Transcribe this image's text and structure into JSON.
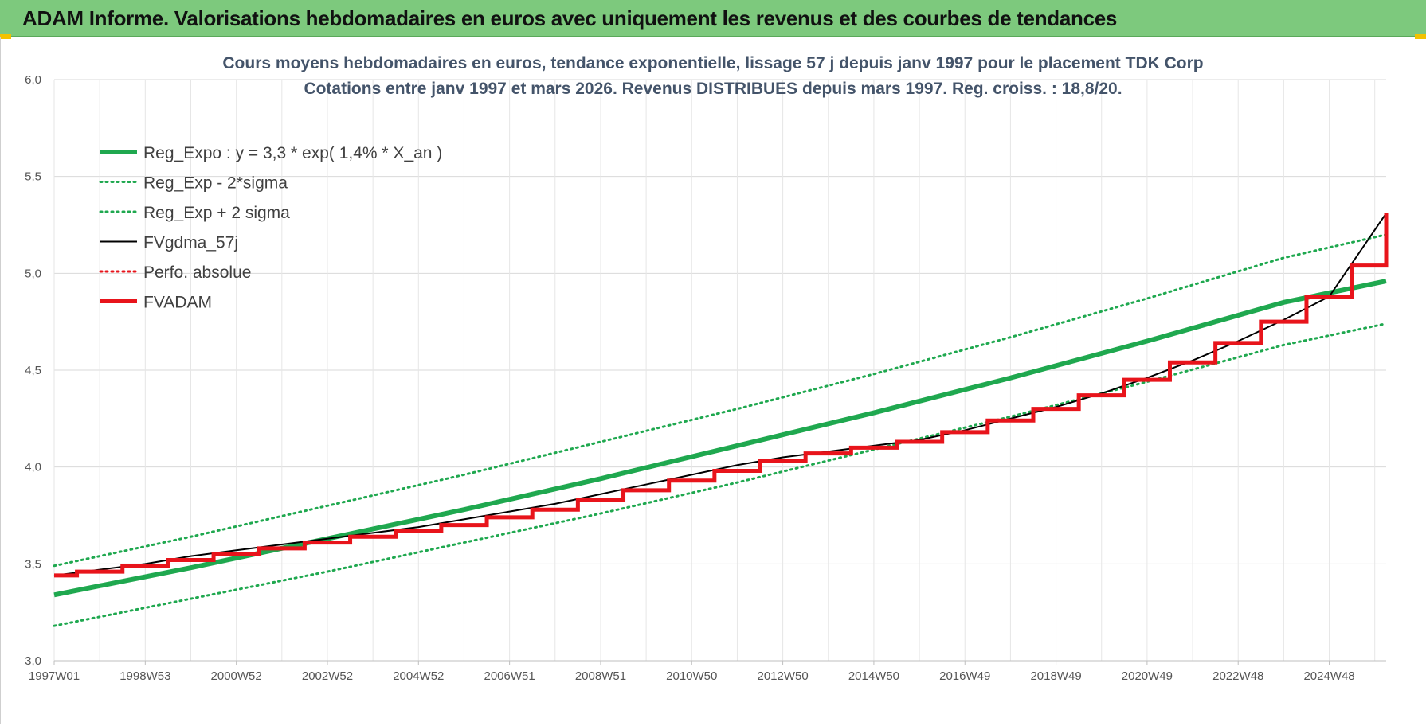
{
  "header": {
    "title": "ADAM Informe. Valorisations hebdomadaires en euros avec uniquement les revenus et des courbes de tendances"
  },
  "colors": {
    "header_bg": "#7dc97d",
    "green": "#1fa84f",
    "red": "#e8141b",
    "black": "#000000",
    "grid": "#d9d9d9"
  },
  "chart_data": {
    "type": "line",
    "title": "Cours moyens hebdomadaires en euros, tendance exponentielle, lissage 57 j depuis janv 1997  pour le placement TDK Corp",
    "subtitle": "Cotations entre janv 1997 et mars 2026. Revenus DISTRIBUES depuis mars 1997. Reg. croiss. : 18,8/20.",
    "xlabel": "",
    "ylabel": "",
    "ylim": [
      3.0,
      6.0
    ],
    "yticks": [
      "3,0",
      "3,5",
      "4,0",
      "4,5",
      "5,0",
      "5,5",
      "6,0"
    ],
    "ytick_values": [
      3.0,
      3.5,
      4.0,
      4.5,
      5.0,
      5.5,
      6.0
    ],
    "xlim": [
      1997.0,
      2026.25
    ],
    "xticks": [
      "1997W01",
      "1998W53",
      "2000W52",
      "2002W52",
      "2004W52",
      "2006W51",
      "2008W51",
      "2010W50",
      "2012W50",
      "2014W50",
      "2016W49",
      "2018W49",
      "2020W49",
      "2022W48",
      "2024W48"
    ],
    "xtick_values": [
      1997.0,
      1999.0,
      2001.0,
      2003.0,
      2005.0,
      2007.0,
      2009.0,
      2011.0,
      2013.0,
      2015.0,
      2017.0,
      2019.0,
      2021.0,
      2023.0,
      2025.0
    ],
    "grid": true,
    "legend_position": "top-left",
    "series": [
      {
        "name": "Reg_Expo : y = 3,3 * exp( 1,4% *  X_an )",
        "style": "solid-thick",
        "color": "#1fa84f",
        "x": [
          1997.0,
          2000.0,
          2003.0,
          2006.0,
          2009.0,
          2012.0,
          2015.0,
          2018.0,
          2021.0,
          2024.0,
          2026.25
        ],
        "y": [
          3.34,
          3.48,
          3.63,
          3.78,
          3.94,
          4.11,
          4.28,
          4.46,
          4.65,
          4.85,
          4.96
        ]
      },
      {
        "name": "Reg_Exp - 2*sigma",
        "style": "dotted",
        "color": "#1fa84f",
        "x": [
          1997.0,
          2000.0,
          2003.0,
          2006.0,
          2009.0,
          2012.0,
          2015.0,
          2018.0,
          2021.0,
          2024.0,
          2026.25
        ],
        "y": [
          3.18,
          3.32,
          3.46,
          3.61,
          3.76,
          3.92,
          4.09,
          4.26,
          4.44,
          4.63,
          4.74
        ]
      },
      {
        "name": "Reg_Exp + 2 sigma",
        "style": "dotted",
        "color": "#1fa84f",
        "x": [
          1997.0,
          2000.0,
          2003.0,
          2006.0,
          2009.0,
          2012.0,
          2015.0,
          2018.0,
          2021.0,
          2024.0,
          2026.25
        ],
        "y": [
          3.49,
          3.64,
          3.8,
          3.96,
          4.13,
          4.3,
          4.48,
          4.67,
          4.87,
          5.08,
          5.2
        ]
      },
      {
        "name": "FVgdma_57j",
        "style": "solid",
        "color": "#000000",
        "x": [
          1997.0,
          1998.0,
          1999.0,
          2000.0,
          2001.0,
          2002.0,
          2003.0,
          2004.0,
          2005.0,
          2006.0,
          2007.0,
          2008.0,
          2009.0,
          2010.0,
          2011.0,
          2012.0,
          2013.0,
          2014.0,
          2015.0,
          2016.0,
          2017.0,
          2018.0,
          2019.0,
          2020.0,
          2021.0,
          2022.0,
          2023.0,
          2024.0,
          2025.0,
          2026.25
        ],
        "y": [
          3.44,
          3.47,
          3.5,
          3.54,
          3.57,
          3.6,
          3.63,
          3.66,
          3.69,
          3.73,
          3.77,
          3.81,
          3.86,
          3.91,
          3.96,
          4.01,
          4.05,
          4.08,
          4.11,
          4.14,
          4.19,
          4.25,
          4.31,
          4.38,
          4.46,
          4.55,
          4.65,
          4.76,
          4.88,
          5.31
        ]
      },
      {
        "name": "Perfo. absolue",
        "style": "dotted",
        "color": "#e8141b",
        "x": [
          1997.0,
          2026.25
        ],
        "y": [
          3.44,
          5.31
        ]
      },
      {
        "name": "FVADAM",
        "style": "step-thick",
        "color": "#e8141b",
        "x": [
          1997.0,
          1997.5,
          1998.5,
          1999.5,
          2000.5,
          2001.5,
          2002.5,
          2003.5,
          2004.5,
          2005.5,
          2006.5,
          2007.5,
          2008.5,
          2009.5,
          2010.5,
          2011.5,
          2012.5,
          2013.5,
          2014.5,
          2015.5,
          2016.5,
          2017.5,
          2018.5,
          2019.5,
          2020.5,
          2021.5,
          2022.5,
          2023.5,
          2024.5,
          2025.5,
          2026.25
        ],
        "y": [
          3.44,
          3.46,
          3.49,
          3.52,
          3.55,
          3.58,
          3.61,
          3.64,
          3.67,
          3.7,
          3.74,
          3.78,
          3.83,
          3.88,
          3.93,
          3.98,
          4.03,
          4.07,
          4.1,
          4.13,
          4.18,
          4.24,
          4.3,
          4.37,
          4.45,
          4.54,
          4.64,
          4.75,
          4.88,
          5.04,
          5.31
        ]
      }
    ]
  }
}
